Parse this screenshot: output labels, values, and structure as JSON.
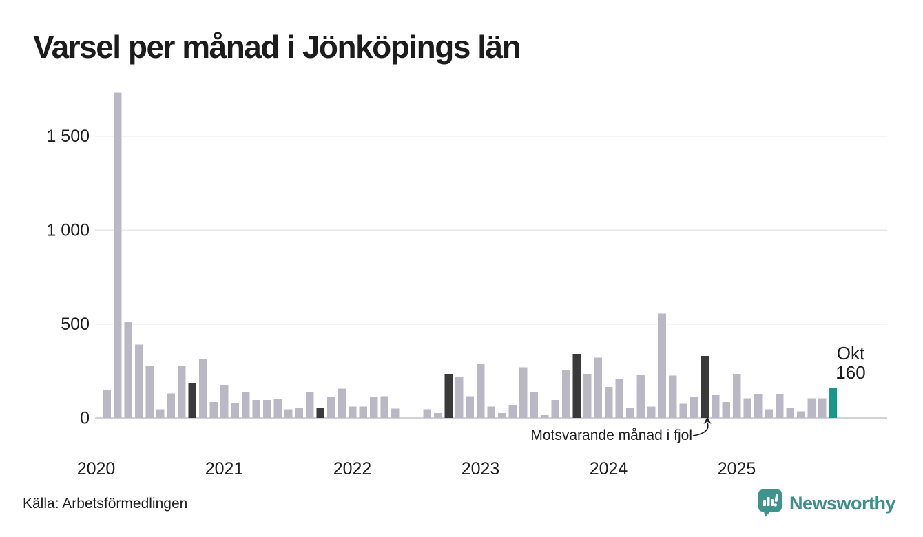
{
  "title": "Varsel per månad i Jönköpings län",
  "source": "Källa: Arbetsförmedlingen",
  "brand": {
    "name": "Newsworthy",
    "icon": "newsworthy-bubble-chart-icon"
  },
  "annotation": {
    "text": "Motsvarande månad i fjol"
  },
  "current_label": {
    "month": "Okt",
    "value": "160"
  },
  "colors": {
    "bar_default": "#bab8c5",
    "bar_last_year_month": "#3a3a3a",
    "bar_current": "#16998b",
    "gridline": "#e9e9ed",
    "baseline": "#d2d2d6",
    "text": "#1d1d1d",
    "brand_teal": "#3e8e89"
  },
  "chart_data": {
    "type": "bar",
    "title": "Varsel per månad i Jönköpings län",
    "xlabel": "",
    "ylabel": "",
    "ylim": [
      0,
      1750
    ],
    "grid": true,
    "legend_position": "none",
    "y_ticks": [
      {
        "value": 0,
        "label": "0"
      },
      {
        "value": 500,
        "label": "500"
      },
      {
        "value": 1000,
        "label": "1 000"
      },
      {
        "value": 1500,
        "label": "1 500"
      }
    ],
    "x_year_labels": [
      "2020",
      "2021",
      "2022",
      "2023",
      "2024",
      "2025"
    ],
    "series": [
      {
        "year": "2020",
        "values": [
          0,
          150,
          1730,
          510,
          390,
          275,
          45,
          130,
          275,
          185,
          315,
          85
        ]
      },
      {
        "year": "2021",
        "values": [
          175,
          80,
          140,
          95,
          95,
          100,
          45,
          55,
          140,
          55,
          110,
          155
        ]
      },
      {
        "year": "2022",
        "values": [
          60,
          60,
          110,
          115,
          50,
          0,
          0,
          45,
          25,
          235,
          220,
          115
        ]
      },
      {
        "year": "2023",
        "values": [
          290,
          60,
          25,
          70,
          270,
          140,
          15,
          95,
          255,
          340,
          235,
          320
        ]
      },
      {
        "year": "2024",
        "values": [
          165,
          205,
          55,
          230,
          60,
          555,
          225,
          75,
          110,
          330,
          120,
          85
        ]
      },
      {
        "year": "2025",
        "values": [
          235,
          105,
          125,
          45,
          125,
          55,
          35,
          105,
          105,
          160
        ]
      }
    ],
    "highlighted_month_index": 9,
    "highlighted_month_note": "Motsvarande månad i fjol",
    "current_point": {
      "year": "2025",
      "month": "Okt",
      "value": 160
    }
  }
}
